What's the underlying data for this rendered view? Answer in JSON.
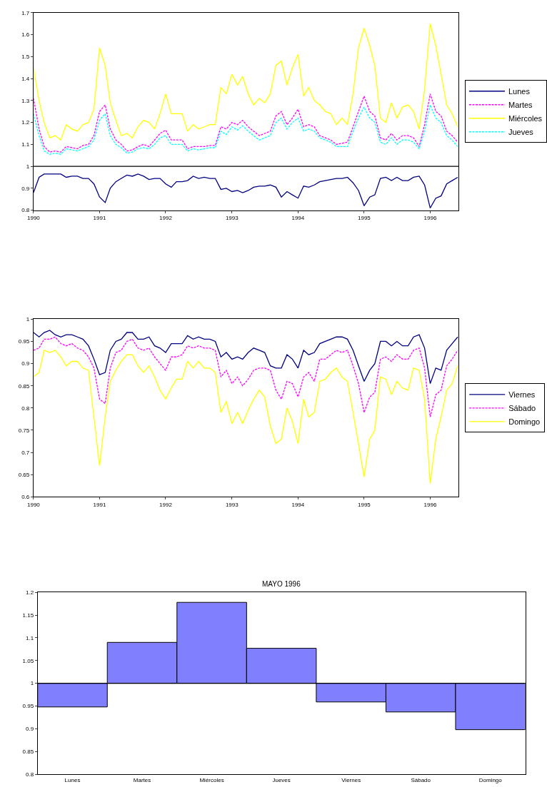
{
  "chart_data": [
    {
      "type": "line",
      "x": [
        "1990-01",
        "1990-02",
        "1990-03",
        "1990-04",
        "1990-05",
        "1990-06",
        "1990-07",
        "1990-08",
        "1990-09",
        "1990-10",
        "1990-11",
        "1990-12",
        "1991-01",
        "1991-02",
        "1991-03",
        "1991-04",
        "1991-05",
        "1991-06",
        "1991-07",
        "1991-08",
        "1991-09",
        "1991-10",
        "1991-11",
        "1991-12",
        "1992-01",
        "1992-02",
        "1992-03",
        "1992-04",
        "1992-05",
        "1992-06",
        "1992-07",
        "1992-08",
        "1992-09",
        "1992-10",
        "1992-11",
        "1992-12",
        "1993-01",
        "1993-02",
        "1993-03",
        "1993-04",
        "1993-05",
        "1993-06",
        "1993-07",
        "1993-08",
        "1993-09",
        "1993-10",
        "1993-11",
        "1993-12",
        "1994-01",
        "1994-02",
        "1994-03",
        "1994-04",
        "1994-05",
        "1994-06",
        "1994-07",
        "1994-08",
        "1994-09",
        "1994-10",
        "1994-11",
        "1994-12",
        "1995-01",
        "1995-02",
        "1995-03",
        "1995-04",
        "1995-05",
        "1995-06",
        "1995-07",
        "1995-08",
        "1995-09",
        "1995-10",
        "1995-11",
        "1995-12",
        "1996-01",
        "1996-02",
        "1996-03",
        "1996-04",
        "1996-05",
        "1996-06"
      ],
      "series": [
        {
          "name": "Lunes",
          "color": "#000080",
          "line_style": "solid",
          "values": [
            0.88,
            0.95,
            0.965,
            0.965,
            0.965,
            0.965,
            0.95,
            0.955,
            0.955,
            0.945,
            0.945,
            0.92,
            0.86,
            0.835,
            0.9,
            0.93,
            0.945,
            0.96,
            0.955,
            0.965,
            0.955,
            0.94,
            0.945,
            0.945,
            0.92,
            0.905,
            0.93,
            0.93,
            0.935,
            0.955,
            0.945,
            0.95,
            0.945,
            0.945,
            0.895,
            0.9,
            0.885,
            0.89,
            0.88,
            0.89,
            0.905,
            0.91,
            0.91,
            0.915,
            0.905,
            0.86,
            0.885,
            0.87,
            0.855,
            0.91,
            0.905,
            0.915,
            0.93,
            0.935,
            0.94,
            0.945,
            0.945,
            0.95,
            0.925,
            0.89,
            0.82,
            0.86,
            0.87,
            0.945,
            0.95,
            0.935,
            0.95,
            0.935,
            0.935,
            0.95,
            0.955,
            0.915,
            0.81,
            0.855,
            0.865,
            0.92,
            0.935,
            0.95
          ]
        },
        {
          "name": "Martes",
          "color": "#ff00ff",
          "line_style": "dashed",
          "values": [
            1.31,
            1.17,
            1.09,
            1.065,
            1.07,
            1.065,
            1.09,
            1.085,
            1.08,
            1.095,
            1.1,
            1.14,
            1.25,
            1.28,
            1.17,
            1.12,
            1.1,
            1.07,
            1.075,
            1.09,
            1.1,
            1.09,
            1.12,
            1.15,
            1.165,
            1.12,
            1.12,
            1.12,
            1.08,
            1.09,
            1.09,
            1.09,
            1.095,
            1.095,
            1.18,
            1.17,
            1.2,
            1.19,
            1.21,
            1.18,
            1.16,
            1.14,
            1.15,
            1.16,
            1.23,
            1.25,
            1.19,
            1.22,
            1.26,
            1.18,
            1.19,
            1.18,
            1.14,
            1.13,
            1.12,
            1.1,
            1.105,
            1.11,
            1.18,
            1.25,
            1.32,
            1.25,
            1.23,
            1.13,
            1.12,
            1.15,
            1.12,
            1.14,
            1.14,
            1.13,
            1.09,
            1.19,
            1.33,
            1.25,
            1.23,
            1.16,
            1.14,
            1.11
          ]
        },
        {
          "name": "Miércoles",
          "color": "#ffff00",
          "line_style": "solid",
          "values": [
            1.45,
            1.3,
            1.2,
            1.13,
            1.14,
            1.12,
            1.19,
            1.17,
            1.16,
            1.19,
            1.2,
            1.26,
            1.54,
            1.46,
            1.29,
            1.21,
            1.14,
            1.15,
            1.13,
            1.18,
            1.21,
            1.2,
            1.17,
            1.24,
            1.33,
            1.24,
            1.24,
            1.24,
            1.16,
            1.19,
            1.17,
            1.18,
            1.19,
            1.19,
            1.36,
            1.33,
            1.42,
            1.37,
            1.41,
            1.33,
            1.28,
            1.31,
            1.29,
            1.33,
            1.46,
            1.48,
            1.37,
            1.45,
            1.51,
            1.32,
            1.36,
            1.3,
            1.28,
            1.25,
            1.24,
            1.19,
            1.22,
            1.19,
            1.33,
            1.54,
            1.63,
            1.55,
            1.46,
            1.22,
            1.2,
            1.29,
            1.22,
            1.27,
            1.28,
            1.25,
            1.17,
            1.35,
            1.65,
            1.55,
            1.42,
            1.28,
            1.24,
            1.18
          ]
        },
        {
          "name": "Jueves",
          "color": "#00ffff",
          "line_style": "dashed",
          "values": [
            1.24,
            1.14,
            1.07,
            1.055,
            1.06,
            1.055,
            1.08,
            1.075,
            1.07,
            1.08,
            1.09,
            1.12,
            1.21,
            1.24,
            1.14,
            1.1,
            1.085,
            1.06,
            1.065,
            1.08,
            1.085,
            1.08,
            1.1,
            1.13,
            1.14,
            1.1,
            1.1,
            1.1,
            1.07,
            1.08,
            1.075,
            1.08,
            1.085,
            1.085,
            1.16,
            1.145,
            1.18,
            1.165,
            1.185,
            1.16,
            1.14,
            1.12,
            1.13,
            1.14,
            1.2,
            1.22,
            1.17,
            1.2,
            1.22,
            1.16,
            1.17,
            1.16,
            1.13,
            1.12,
            1.11,
            1.09,
            1.09,
            1.09,
            1.16,
            1.22,
            1.27,
            1.22,
            1.2,
            1.11,
            1.1,
            1.13,
            1.1,
            1.12,
            1.12,
            1.11,
            1.08,
            1.16,
            1.28,
            1.22,
            1.2,
            1.14,
            1.12,
            1.09
          ]
        }
      ],
      "xlim": [
        "1990-01-01",
        "1996-06-06"
      ],
      "xticks": [
        {
          "value": "1990-01-01",
          "label": "1990"
        },
        {
          "value": "1991-01-01",
          "label": "1991"
        },
        {
          "value": "1992-01-01",
          "label": "1992"
        },
        {
          "value": "1993-01-01",
          "label": "1993"
        },
        {
          "value": "1994-01-01",
          "label": "1994"
        },
        {
          "value": "1995-01-01",
          "label": "1995"
        },
        {
          "value": "1996-01-01",
          "label": "1996"
        }
      ],
      "ylim": [
        0.8,
        1.7
      ],
      "yticks": [
        0.8,
        0.9,
        1,
        1.1,
        1.2,
        1.3,
        1.4,
        1.5,
        1.6,
        1.7
      ],
      "ref_lines": [
        {
          "axis": "y",
          "value": 1,
          "color": "#000000"
        }
      ],
      "legend": "right"
    },
    {
      "type": "line",
      "x": [
        "1990-01",
        "1990-02",
        "1990-03",
        "1990-04",
        "1990-05",
        "1990-06",
        "1990-07",
        "1990-08",
        "1990-09",
        "1990-10",
        "1990-11",
        "1990-12",
        "1991-01",
        "1991-02",
        "1991-03",
        "1991-04",
        "1991-05",
        "1991-06",
        "1991-07",
        "1991-08",
        "1991-09",
        "1991-10",
        "1991-11",
        "1991-12",
        "1992-01",
        "1992-02",
        "1992-03",
        "1992-04",
        "1992-05",
        "1992-06",
        "1992-07",
        "1992-08",
        "1992-09",
        "1992-10",
        "1992-11",
        "1992-12",
        "1993-01",
        "1993-02",
        "1993-03",
        "1993-04",
        "1993-05",
        "1993-06",
        "1993-07",
        "1993-08",
        "1993-09",
        "1993-10",
        "1993-11",
        "1993-12",
        "1994-01",
        "1994-02",
        "1994-03",
        "1994-04",
        "1994-05",
        "1994-06",
        "1994-07",
        "1994-08",
        "1994-09",
        "1994-10",
        "1994-11",
        "1994-12",
        "1995-01",
        "1995-02",
        "1995-03",
        "1995-04",
        "1995-05",
        "1995-06",
        "1995-07",
        "1995-08",
        "1995-09",
        "1995-10",
        "1995-11",
        "1995-12",
        "1996-01",
        "1996-02",
        "1996-03",
        "1996-04",
        "1996-05",
        "1996-06"
      ],
      "series": [
        {
          "name": "Viernes",
          "color": "#000080",
          "line_style": "solid",
          "values": [
            0.97,
            0.96,
            0.97,
            0.975,
            0.965,
            0.96,
            0.965,
            0.965,
            0.96,
            0.955,
            0.94,
            0.91,
            0.875,
            0.88,
            0.93,
            0.95,
            0.955,
            0.97,
            0.97,
            0.955,
            0.955,
            0.96,
            0.94,
            0.935,
            0.925,
            0.945,
            0.945,
            0.945,
            0.963,
            0.955,
            0.96,
            0.955,
            0.955,
            0.95,
            0.915,
            0.925,
            0.91,
            0.915,
            0.91,
            0.925,
            0.935,
            0.93,
            0.925,
            0.895,
            0.89,
            0.89,
            0.92,
            0.91,
            0.89,
            0.93,
            0.92,
            0.925,
            0.945,
            0.95,
            0.955,
            0.96,
            0.96,
            0.955,
            0.93,
            0.895,
            0.86,
            0.885,
            0.9,
            0.95,
            0.95,
            0.94,
            0.95,
            0.94,
            0.94,
            0.96,
            0.965,
            0.935,
            0.855,
            0.89,
            0.885,
            0.93,
            0.945,
            0.96
          ]
        },
        {
          "name": "Sábado",
          "color": "#ff00ff",
          "line_style": "dashed",
          "values": [
            0.93,
            0.935,
            0.955,
            0.955,
            0.96,
            0.945,
            0.94,
            0.945,
            0.935,
            0.93,
            0.915,
            0.89,
            0.82,
            0.81,
            0.89,
            0.925,
            0.93,
            0.95,
            0.955,
            0.935,
            0.93,
            0.935,
            0.915,
            0.9,
            0.885,
            0.915,
            0.915,
            0.92,
            0.94,
            0.935,
            0.94,
            0.935,
            0.935,
            0.93,
            0.87,
            0.885,
            0.855,
            0.87,
            0.85,
            0.865,
            0.885,
            0.89,
            0.89,
            0.885,
            0.84,
            0.82,
            0.86,
            0.855,
            0.825,
            0.87,
            0.88,
            0.86,
            0.91,
            0.91,
            0.92,
            0.93,
            0.925,
            0.93,
            0.895,
            0.855,
            0.79,
            0.825,
            0.835,
            0.91,
            0.915,
            0.905,
            0.92,
            0.91,
            0.91,
            0.93,
            0.935,
            0.89,
            0.78,
            0.83,
            0.84,
            0.895,
            0.91,
            0.93
          ]
        },
        {
          "name": "Domingo",
          "color": "#ffff00",
          "line_style": "solid",
          "values": [
            0.87,
            0.88,
            0.93,
            0.925,
            0.93,
            0.915,
            0.895,
            0.905,
            0.905,
            0.89,
            0.885,
            0.78,
            0.67,
            0.78,
            0.86,
            0.885,
            0.905,
            0.92,
            0.92,
            0.895,
            0.88,
            0.895,
            0.87,
            0.84,
            0.82,
            0.845,
            0.865,
            0.865,
            0.905,
            0.89,
            0.905,
            0.89,
            0.89,
            0.88,
            0.79,
            0.815,
            0.765,
            0.79,
            0.765,
            0.795,
            0.82,
            0.84,
            0.825,
            0.76,
            0.72,
            0.73,
            0.8,
            0.77,
            0.72,
            0.82,
            0.78,
            0.79,
            0.86,
            0.865,
            0.88,
            0.89,
            0.87,
            0.86,
            0.79,
            0.72,
            0.645,
            0.73,
            0.75,
            0.87,
            0.865,
            0.83,
            0.86,
            0.845,
            0.84,
            0.89,
            0.885,
            0.82,
            0.63,
            0.73,
            0.78,
            0.84,
            0.855,
            0.895
          ]
        }
      ],
      "xlim": [
        "1990-01-01",
        "1996-06-06"
      ],
      "xticks": [
        {
          "value": "1990-01-01",
          "label": "1990"
        },
        {
          "value": "1991-01-01",
          "label": "1991"
        },
        {
          "value": "1992-01-01",
          "label": "1992"
        },
        {
          "value": "1993-01-01",
          "label": "1993"
        },
        {
          "value": "1994-01-01",
          "label": "1994"
        },
        {
          "value": "1995-01-01",
          "label": "1995"
        },
        {
          "value": "1996-01-01",
          "label": "1996"
        }
      ],
      "ylim": [
        0.6,
        1
      ],
      "yticks": [
        0.6,
        0.65,
        0.7,
        0.75,
        0.8,
        0.85,
        0.9,
        0.95,
        1
      ],
      "legend": "right"
    },
    {
      "type": "bar",
      "title": "MAYO 1996",
      "categories": [
        "Lunes",
        "Martes",
        "Miércoles",
        "Jueves",
        "Viernes",
        "Sábado",
        "Domingo"
      ],
      "base": [
        1,
        1,
        1,
        1,
        1,
        1,
        1
      ],
      "values": [
        -0.052,
        0.09,
        0.178,
        0.077,
        -0.041,
        -0.063,
        -0.102
      ],
      "color": "#8080ff",
      "ylim": [
        0.8,
        1.2
      ],
      "yticks": [
        0.8,
        0.85,
        0.9,
        0.95,
        1,
        1.05,
        1.1,
        1.15,
        1.2
      ],
      "ref_lines": [
        {
          "axis": "y",
          "value": 1,
          "color": "#000000"
        }
      ],
      "legend": false
    }
  ]
}
